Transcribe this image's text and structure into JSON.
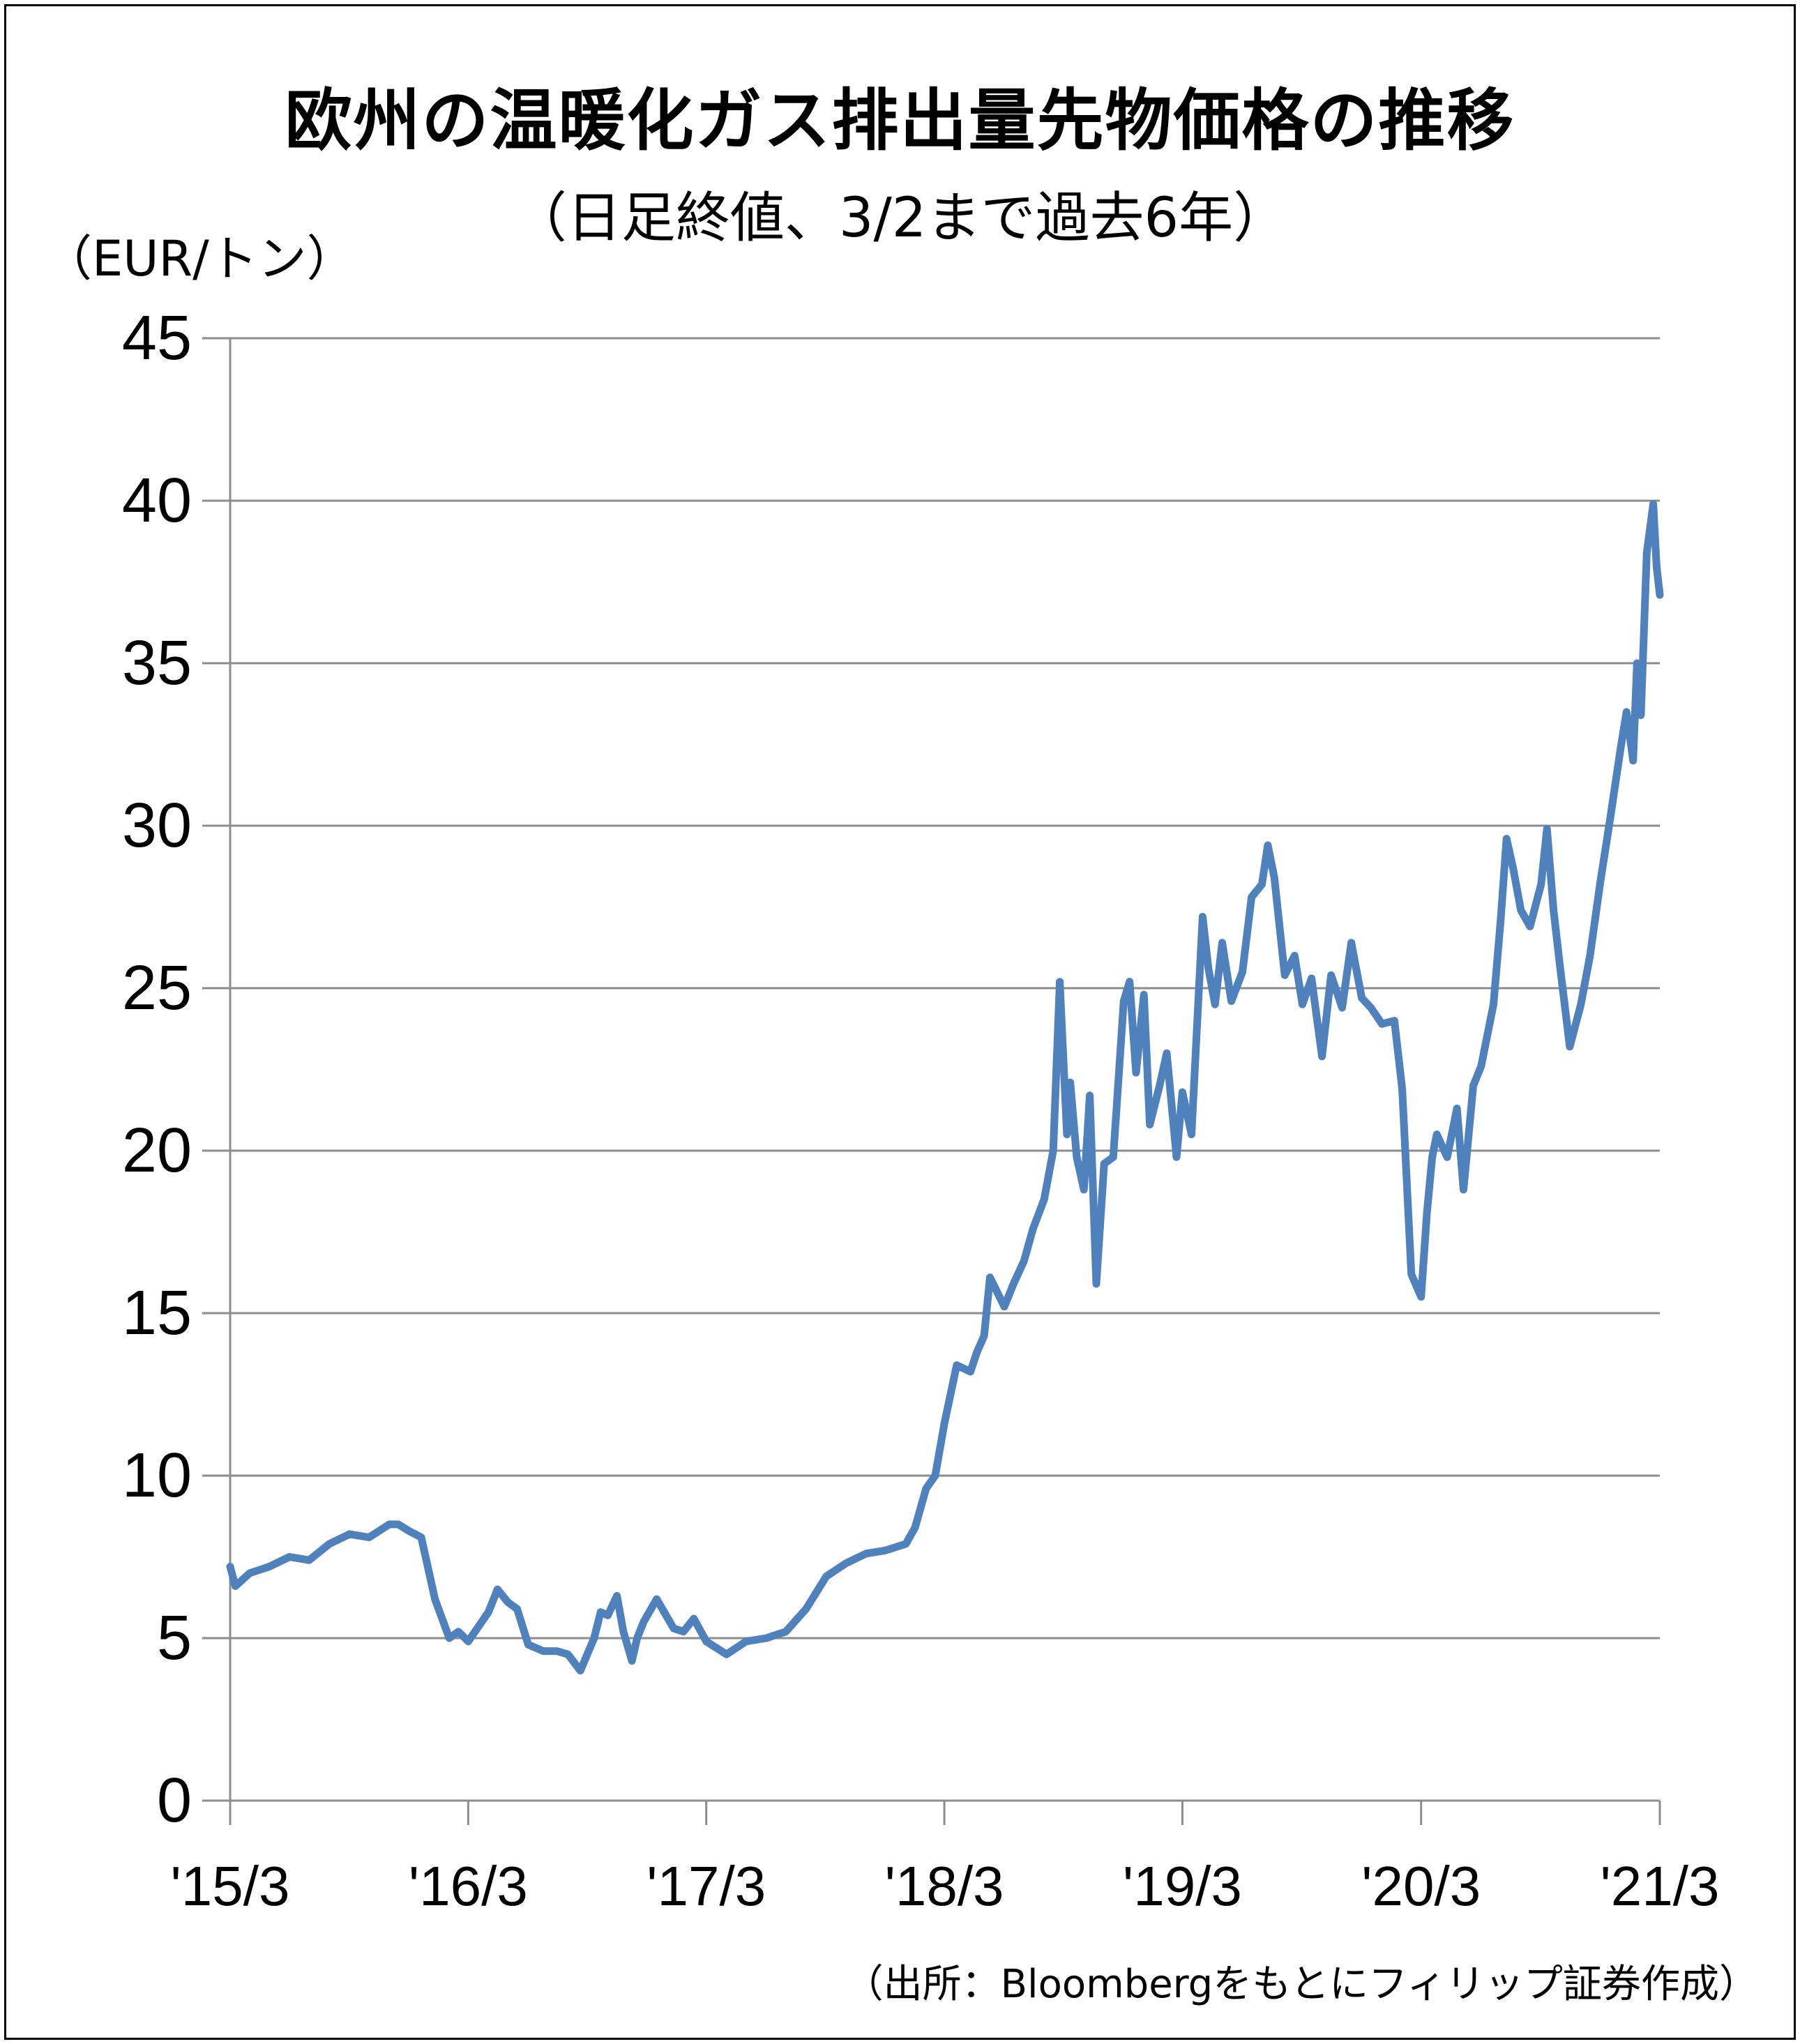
{
  "chart_data": {
    "type": "line",
    "title": "欧州の温暖化ガス排出量先物価格の推移",
    "subtitle": "（日足終値、3/2まで過去6年）",
    "ylabel": "（EUR/トン）",
    "source": "（出所：Bloombergをもとにフィリップ証券作成）",
    "ylim": [
      0,
      45
    ],
    "yticks": [
      0,
      5,
      10,
      15,
      20,
      25,
      30,
      35,
      40,
      45
    ],
    "xlim": [
      "2015-03-02",
      "2021-03-02"
    ],
    "xticks": [
      {
        "label": "'15/3",
        "date": "2015-03-02"
      },
      {
        "label": "'16/3",
        "date": "2016-03-01"
      },
      {
        "label": "'17/3",
        "date": "2017-03-01"
      },
      {
        "label": "'18/3",
        "date": "2018-03-01"
      },
      {
        "label": "'19/3",
        "date": "2019-03-01"
      },
      {
        "label": "'20/3",
        "date": "2020-03-01"
      },
      {
        "label": "'21/3",
        "date": "2021-03-02"
      }
    ],
    "grid": true,
    "line_color": "#4F81BD",
    "series": [
      {
        "x": [
          "2015-03-02",
          "2015-03-10",
          "2015-04-01",
          "2015-05-01",
          "2015-06-01",
          "2015-07-01",
          "2015-08-01",
          "2015-09-01",
          "2015-10-01",
          "2015-11-01",
          "2015-11-15",
          "2015-12-01",
          "2015-12-20",
          "2016-01-10",
          "2016-02-01",
          "2016-02-15",
          "2016-03-01",
          "2016-04-01",
          "2016-04-15",
          "2016-05-01",
          "2016-05-15",
          "2016-06-01",
          "2016-06-24",
          "2016-07-15",
          "2016-08-01",
          "2016-08-20",
          "2016-09-10",
          "2016-09-20",
          "2016-10-01",
          "2016-10-15",
          "2016-10-25",
          "2016-11-07",
          "2016-11-15",
          "2016-11-25",
          "2016-12-15",
          "2017-01-10",
          "2017-01-25",
          "2017-02-10",
          "2017-03-01",
          "2017-04-01",
          "2017-05-01",
          "2017-06-01",
          "2017-07-01",
          "2017-08-01",
          "2017-09-01",
          "2017-10-01",
          "2017-11-01",
          "2017-12-01",
          "2018-01-01",
          "2018-01-15",
          "2018-02-01",
          "2018-02-15",
          "2018-03-01",
          "2018-03-20",
          "2018-04-10",
          "2018-04-20",
          "2018-05-01",
          "2018-05-10",
          "2018-06-01",
          "2018-06-15",
          "2018-07-01",
          "2018-07-15",
          "2018-08-01",
          "2018-08-15",
          "2018-08-25",
          "2018-09-05",
          "2018-09-10",
          "2018-09-20",
          "2018-10-01",
          "2018-10-10",
          "2018-10-20",
          "2018-11-01",
          "2018-11-15",
          "2018-12-01",
          "2018-12-10",
          "2018-12-20",
          "2019-01-01",
          "2019-01-10",
          "2019-01-25",
          "2019-02-05",
          "2019-02-20",
          "2019-03-01",
          "2019-03-15",
          "2019-04-01",
          "2019-04-10",
          "2019-04-20",
          "2019-05-01",
          "2019-05-15",
          "2019-06-01",
          "2019-06-15",
          "2019-07-01",
          "2019-07-10",
          "2019-07-20",
          "2019-08-05",
          "2019-08-20",
          "2019-09-01",
          "2019-09-15",
          "2019-10-01",
          "2019-10-15",
          "2019-11-01",
          "2019-11-15",
          "2019-12-01",
          "2019-12-15",
          "2020-01-01",
          "2020-01-20",
          "2020-02-01",
          "2020-02-15",
          "2020-03-01",
          "2020-03-10",
          "2020-03-18",
          "2020-03-25",
          "2020-04-10",
          "2020-04-25",
          "2020-05-05",
          "2020-05-20",
          "2020-06-01",
          "2020-06-20",
          "2020-07-01",
          "2020-07-10",
          "2020-07-20",
          "2020-08-01",
          "2020-08-15",
          "2020-09-01",
          "2020-09-10",
          "2020-09-20",
          "2020-10-01",
          "2020-10-15",
          "2020-11-01",
          "2020-11-15",
          "2020-12-01",
          "2020-12-15",
          "2021-01-01",
          "2021-01-10",
          "2021-01-20",
          "2021-01-26",
          "2021-02-01",
          "2021-02-10",
          "2021-02-20",
          "2021-02-25",
          "2021-03-02"
        ],
        "values": [
          7.2,
          6.6,
          7.0,
          7.2,
          7.5,
          7.4,
          7.9,
          8.2,
          8.1,
          8.5,
          8.5,
          8.3,
          8.1,
          6.2,
          5.0,
          5.2,
          4.9,
          5.8,
          6.5,
          6.1,
          5.9,
          4.8,
          4.6,
          4.6,
          4.5,
          4.0,
          5.0,
          5.8,
          5.7,
          6.3,
          5.2,
          4.3,
          5.0,
          5.5,
          6.2,
          5.3,
          5.2,
          5.6,
          4.9,
          4.5,
          4.9,
          5.0,
          5.2,
          5.9,
          6.9,
          7.3,
          7.6,
          7.7,
          7.9,
          8.4,
          9.6,
          10.0,
          11.6,
          13.4,
          13.2,
          13.8,
          14.3,
          16.1,
          15.2,
          15.9,
          16.6,
          17.6,
          18.5,
          20.0,
          25.2,
          20.5,
          22.1,
          19.8,
          18.8,
          21.7,
          15.9,
          19.6,
          19.8,
          24.6,
          25.2,
          22.4,
          24.8,
          20.8,
          22.0,
          23.0,
          19.8,
          21.8,
          20.5,
          27.2,
          25.6,
          24.5,
          26.4,
          24.6,
          25.5,
          27.8,
          28.2,
          29.4,
          28.4,
          25.4,
          26.0,
          24.5,
          25.3,
          22.9,
          25.4,
          24.4,
          26.4,
          24.7,
          24.4,
          23.9,
          24.0,
          21.9,
          16.2,
          15.5,
          18.1,
          19.8,
          20.5,
          19.8,
          21.3,
          18.8,
          22.0,
          22.6,
          24.5,
          27.1,
          29.6,
          28.7,
          27.4,
          26.9,
          28.2,
          29.9,
          27.4,
          25.5,
          23.2,
          24.5,
          26.0,
          28.3,
          30.1,
          32.4,
          33.5,
          32.0,
          35.0,
          33.4,
          38.4,
          39.9,
          38.0,
          37.1
        ]
      }
    ]
  }
}
